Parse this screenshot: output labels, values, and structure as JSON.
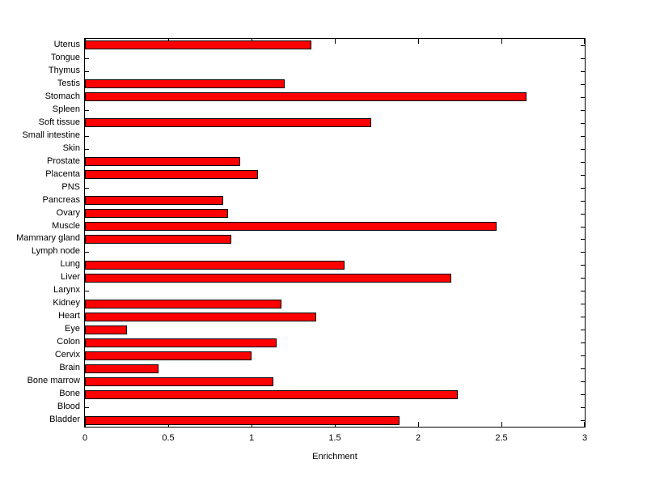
{
  "chart_data": {
    "type": "bar",
    "orientation": "horizontal",
    "title": "",
    "xlabel": "Enrichment",
    "ylabel": "",
    "xlim": [
      0,
      3
    ],
    "xticks": [
      0,
      0.5,
      1,
      1.5,
      2,
      2.5,
      3
    ],
    "xtick_labels": [
      "0",
      "0.5",
      "1",
      "1.5",
      "2",
      "2.5",
      "3"
    ],
    "categories": [
      "Uterus",
      "Tongue",
      "Thymus",
      "Testis",
      "Stomach",
      "Spleen",
      "Soft tissue",
      "Small intestine",
      "Skin",
      "Prostate",
      "Placenta",
      "PNS",
      "Pancreas",
      "Ovary",
      "Muscle",
      "Mammary gland",
      "Lymph node",
      "Lung",
      "Liver",
      "Larynx",
      "Kidney",
      "Heart",
      "Eye",
      "Colon",
      "Cervix",
      "Brain",
      "Bone marrow",
      "Bone",
      "Blood",
      "Bladder"
    ],
    "values": [
      1.36,
      0,
      0,
      1.2,
      2.65,
      0,
      1.72,
      0,
      0,
      0.93,
      1.04,
      0,
      0.83,
      0.86,
      2.47,
      0.88,
      0,
      1.56,
      2.2,
      0,
      1.18,
      1.39,
      0.25,
      1.15,
      1.0,
      0.44,
      1.13,
      2.24,
      0,
      1.89
    ],
    "bar_color": "#FF0000",
    "bar_edge_color": "#000000",
    "grid": false,
    "legend": null
  }
}
